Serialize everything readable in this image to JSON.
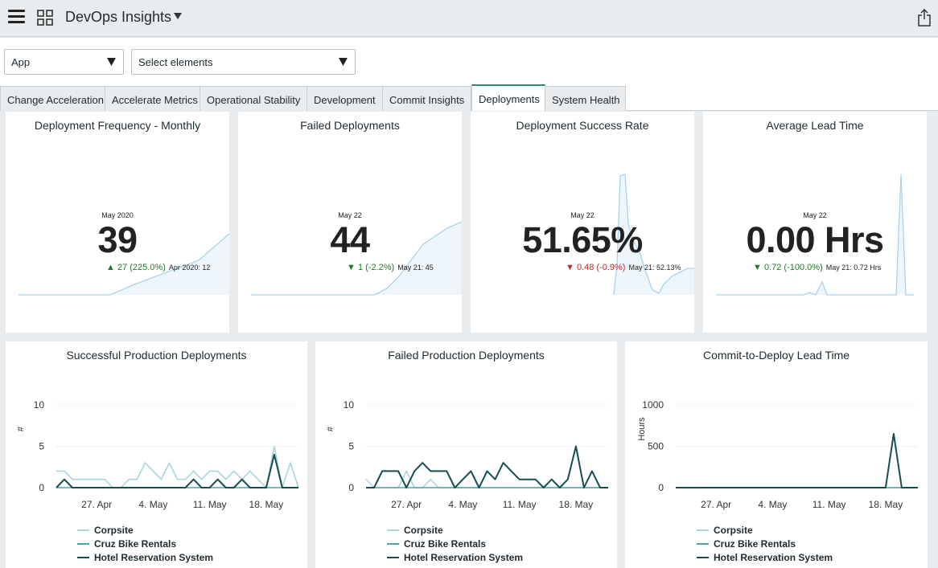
{
  "header": {
    "title": "DevOps Insights"
  },
  "filters": {
    "app_label": "App",
    "elements_placeholder": "Select elements"
  },
  "tabs": [
    {
      "label": "Change Acceleration"
    },
    {
      "label": "Accelerate Metrics"
    },
    {
      "label": "Operational Stability"
    },
    {
      "label": "Development"
    },
    {
      "label": "Commit Insights"
    },
    {
      "label": "Deployments",
      "active": true
    },
    {
      "label": "System Health"
    }
  ],
  "kpis": [
    {
      "title": "Deployment Frequency - Monthly",
      "date": "May 2020",
      "value": "39",
      "change": "▲ 27 (225.0%)",
      "change_direction": "up",
      "previous": "Apr 2020: 12"
    },
    {
      "title": "Failed Deployments",
      "date": "May 22",
      "value": "44",
      "change": "▼ 1 (-2.2%)",
      "change_direction": "down-good",
      "previous": "May 21: 45"
    },
    {
      "title": "Deployment Success Rate",
      "date": "May 22",
      "value": "51.65%",
      "change": "▼ 0.48 (-0.9%)",
      "change_direction": "down-bad",
      "previous": "May 21: 52.13%"
    },
    {
      "title": "Average Lead Time",
      "date": "May 22",
      "value": "0.00 Hrs",
      "change": "▼ 0.72 (-100.0%)",
      "change_direction": "down-good",
      "previous": "May 21: 0.72 Hrs"
    }
  ],
  "colors": {
    "corpsite": "#a9d4de",
    "cruz": "#4ea3a3",
    "hotel": "#144e4f",
    "spark_line": "#a9d4ea",
    "spark_fill": "#eef6fb",
    "accent_tab": "#2f8a7e"
  },
  "chart_data": [
    {
      "type": "line",
      "title": "Successful Production Deployments",
      "ylabel": "#",
      "ylim": [
        0,
        10
      ],
      "yticks": [
        "10",
        "5",
        "0"
      ],
      "x_ticks": [
        "27. Apr",
        "4. May",
        "11. May",
        "18. May"
      ],
      "series": [
        {
          "name": "Corpsite",
          "values": [
            2,
            2,
            1,
            1,
            1,
            1,
            1,
            0,
            0,
            1,
            1,
            3,
            2,
            1,
            3,
            1,
            1,
            2,
            1,
            2,
            2,
            1,
            2,
            1,
            2,
            1,
            0,
            5,
            0,
            3,
            0
          ]
        },
        {
          "name": "Cruz Bike Rentals",
          "values": [
            0,
            0,
            0,
            0,
            0,
            0,
            0,
            0,
            0,
            0,
            0,
            0,
            0,
            0,
            0,
            0,
            0,
            0,
            0,
            0,
            0,
            0,
            0,
            0,
            0,
            0,
            0,
            0,
            0,
            0,
            0
          ]
        },
        {
          "name": "Hotel Reservation System",
          "values": [
            0,
            1,
            0,
            0,
            0,
            0,
            0,
            0,
            0,
            0,
            0,
            0,
            0,
            0,
            0,
            0,
            0,
            1,
            0,
            0,
            1,
            0,
            0,
            1,
            0,
            0,
            0,
            4,
            0,
            0,
            0
          ]
        }
      ]
    },
    {
      "type": "line",
      "title": "Failed Production Deployments",
      "ylabel": "#",
      "ylim": [
        0,
        10
      ],
      "yticks": [
        "10",
        "5",
        "0"
      ],
      "x_ticks": [
        "27. Apr",
        "4. May",
        "11. May",
        "18. May"
      ],
      "series": [
        {
          "name": "Corpsite",
          "values": [
            1,
            0,
            0,
            0,
            0,
            2,
            0,
            0,
            1,
            0,
            0,
            0,
            0,
            0,
            0,
            0,
            0,
            0,
            0,
            0,
            0,
            0,
            0,
            0,
            0,
            0,
            0,
            0,
            0,
            0,
            0
          ]
        },
        {
          "name": "Cruz Bike Rentals",
          "values": [
            0,
            0,
            0,
            0,
            0,
            0,
            0,
            0,
            0,
            0,
            0,
            0,
            0,
            0,
            0,
            0,
            0,
            0,
            0,
            0,
            0,
            0,
            0,
            0,
            0,
            0,
            0,
            0,
            0,
            0,
            0
          ]
        },
        {
          "name": "Hotel Reservation System",
          "values": [
            0,
            0,
            2,
            2,
            2,
            0,
            2,
            3,
            2,
            2,
            2,
            0,
            1,
            2,
            0,
            2,
            1,
            3,
            2,
            1,
            1,
            1,
            0,
            1,
            0,
            1,
            5,
            0,
            2,
            0,
            0
          ]
        }
      ]
    },
    {
      "type": "line",
      "title": "Commit-to-Deploy Lead Time",
      "ylabel": "Hours",
      "ylim": [
        0,
        1000
      ],
      "yticks": [
        "1000",
        "500",
        "0"
      ],
      "x_ticks": [
        "27. Apr",
        "4. May",
        "11. May",
        "18. May"
      ],
      "series": [
        {
          "name": "Corpsite",
          "values": [
            0,
            0,
            5,
            0,
            0,
            0,
            0,
            0,
            0,
            0,
            0,
            0,
            0,
            0,
            0,
            0,
            0,
            0,
            0,
            0,
            0,
            0,
            0,
            0,
            0,
            0,
            0,
            0,
            0,
            0,
            0
          ]
        },
        {
          "name": "Cruz Bike Rentals",
          "values": [
            0,
            0,
            0,
            0,
            0,
            0,
            0,
            0,
            0,
            0,
            0,
            0,
            0,
            0,
            0,
            0,
            0,
            0,
            0,
            0,
            0,
            0,
            0,
            0,
            0,
            0,
            0,
            0,
            0,
            0,
            0
          ]
        },
        {
          "name": "Hotel Reservation System",
          "values": [
            0,
            0,
            0,
            0,
            0,
            0,
            0,
            0,
            0,
            0,
            0,
            0,
            0,
            0,
            0,
            0,
            0,
            0,
            0,
            0,
            0,
            0,
            0,
            0,
            0,
            0,
            0,
            650,
            0,
            0,
            0
          ]
        }
      ]
    }
  ]
}
